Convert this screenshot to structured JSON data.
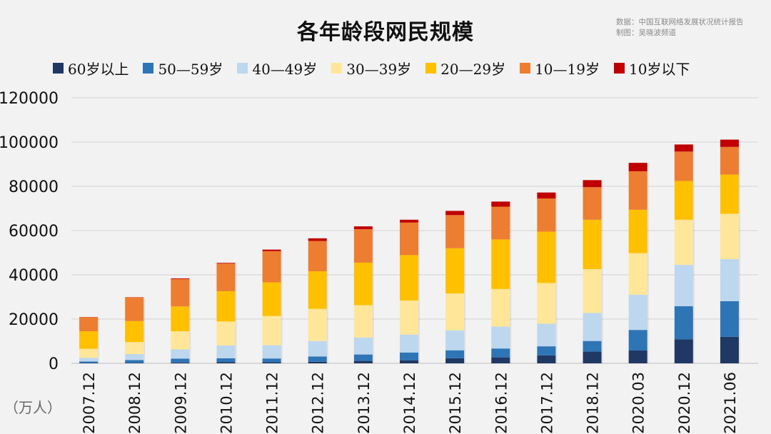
{
  "header": {
    "title": "各年龄段网民规模",
    "source_line1": "数据：中国互联网络发展状况统计报告",
    "source_line2": "制图：吴晓波频道"
  },
  "unit_label": "（万人）",
  "chart_data": {
    "type": "bar",
    "stacked": true,
    "title": "各年龄段网民规模",
    "xlabel": "",
    "ylabel": "（万人）",
    "ylim": [
      0,
      120000
    ],
    "yticks": [
      0,
      20000,
      40000,
      60000,
      80000,
      100000,
      120000
    ],
    "ytick_labels": [
      "0",
      "20000",
      "40000",
      "60000",
      "80000",
      "100000",
      "120000"
    ],
    "grid": true,
    "legend_position": "top",
    "categories": [
      "2007.12",
      "2008.12",
      "2009.12",
      "2010.12",
      "2011.12",
      "2012.12",
      "2013.12",
      "2014.12",
      "2015.12",
      "2016.12",
      "2017.12",
      "2018.12",
      "2020.03",
      "2020.12",
      "2021.06"
    ],
    "series": [
      {
        "name": "60岁以上",
        "color": "#1f3864",
        "values": [
          150,
          200,
          400,
          600,
          500,
          700,
          1100,
          1400,
          2300,
          2700,
          3600,
          5300,
          5800,
          10900,
          12000
        ]
      },
      {
        "name": "50—59岁",
        "color": "#2e75b6",
        "values": [
          650,
          1300,
          1700,
          1700,
          1700,
          2400,
          2900,
          3500,
          3600,
          4000,
          4100,
          4800,
          9300,
          14900,
          16100
        ]
      },
      {
        "name": "40—49岁",
        "color": "#bdd7ee",
        "values": [
          1700,
          2700,
          4200,
          5800,
          6000,
          7000,
          7700,
          8100,
          9000,
          9900,
          10200,
          12700,
          15900,
          18700,
          19000
        ]
      },
      {
        "name": "30—39岁",
        "color": "#ffe699",
        "values": [
          4100,
          5400,
          8200,
          10800,
          13200,
          14500,
          14600,
          15400,
          16700,
          17000,
          18400,
          19800,
          18800,
          20400,
          20500
        ]
      },
      {
        "name": "20—29岁",
        "color": "#ffc000",
        "values": [
          7900,
          9500,
          11200,
          13700,
          15200,
          17000,
          19200,
          20500,
          20400,
          22400,
          23200,
          22300,
          19600,
          17500,
          17700
        ]
      },
      {
        "name": "10—19岁",
        "color": "#ed7d31",
        "values": [
          6300,
          10700,
          12400,
          12500,
          14100,
          13700,
          15100,
          14700,
          15000,
          14800,
          15000,
          14700,
          17400,
          13300,
          12500
        ]
      },
      {
        "name": "10岁以下",
        "color": "#c00000",
        "values": [
          100,
          100,
          300,
          300,
          700,
          1200,
          1300,
          1300,
          1900,
          2300,
          2700,
          3200,
          3800,
          3200,
          3300
        ]
      }
    ]
  }
}
